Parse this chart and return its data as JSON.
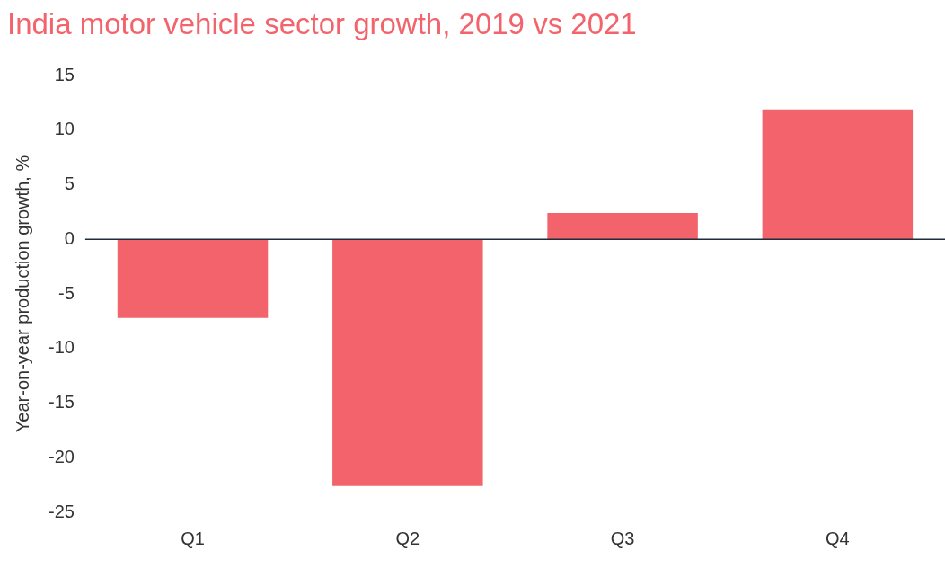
{
  "chart_data": {
    "type": "bar",
    "title": "India motor vehicle sector growth, 2019 vs 2021",
    "ylabel": "Year-on-year production growth, %",
    "categories": [
      "Q1",
      "Q2",
      "Q3",
      "Q4"
    ],
    "values": [
      -7.2,
      -22.6,
      2.4,
      11.9
    ],
    "color": "#f2636b",
    "ylim": [
      -25,
      15
    ],
    "yticks": [
      -25,
      -20,
      -15,
      -10,
      -5,
      0,
      5,
      10,
      15
    ],
    "grid": false,
    "ref_lines": [
      {
        "axis": "y",
        "value": 0,
        "color": "#1f2d3a"
      }
    ],
    "legend": false
  }
}
